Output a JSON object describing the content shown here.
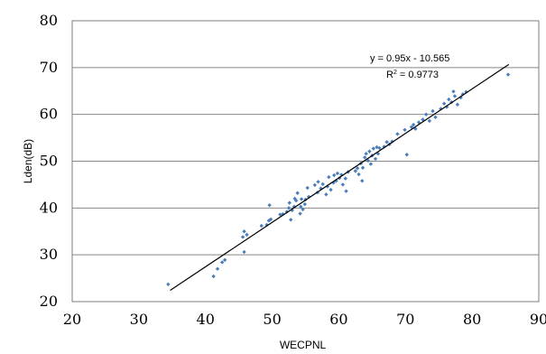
{
  "chart_data": {
    "type": "scatter",
    "title": "",
    "xlabel": "WECPNL",
    "ylabel": "Lden(dB)",
    "xlim": [
      20,
      90
    ],
    "ylim": [
      20,
      80
    ],
    "x_ticks": [
      20,
      30,
      40,
      50,
      60,
      70,
      80,
      90
    ],
    "y_ticks": [
      20,
      30,
      40,
      50,
      60,
      70,
      80
    ],
    "x_tick_labels": [
      "20",
      "30",
      "40",
      "50",
      "60",
      "70",
      "80",
      "90"
    ],
    "y_tick_labels": [
      "20",
      "30",
      "40",
      "50",
      "60",
      "70",
      "80"
    ],
    "grid": "horizontal",
    "marker_color": "#4a7ebb",
    "trendline": {
      "slope": 0.95,
      "intercept": -10.565,
      "x_range": [
        34.7,
        85.5
      ],
      "equation_label": "y = 0.95x - 10.565",
      "r2_label_prefix": "R",
      "r2_label_sup": "2",
      "r2_label_suffix": " = 0.9773"
    },
    "points": [
      [
        34.4,
        23.7
      ],
      [
        41.2,
        25.4
      ],
      [
        41.8,
        27.0
      ],
      [
        42.5,
        28.4
      ],
      [
        42.9,
        28.9
      ],
      [
        45.8,
        30.6
      ],
      [
        45.6,
        33.8
      ],
      [
        45.8,
        35.0
      ],
      [
        46.2,
        34.3
      ],
      [
        48.4,
        36.2
      ],
      [
        49.2,
        36.4
      ],
      [
        49.5,
        37.3
      ],
      [
        49.8,
        37.6
      ],
      [
        49.6,
        40.6
      ],
      [
        51.2,
        38.6
      ],
      [
        51.6,
        38.7
      ],
      [
        52.2,
        39.2
      ],
      [
        52.5,
        40.0
      ],
      [
        52.8,
        37.5
      ],
      [
        52.6,
        41.1
      ],
      [
        53.0,
        39.5
      ],
      [
        53.3,
        40.3
      ],
      [
        53.4,
        42.0
      ],
      [
        53.6,
        41.6
      ],
      [
        53.8,
        43.2
      ],
      [
        54.2,
        38.8
      ],
      [
        54.3,
        40.3
      ],
      [
        54.4,
        41.9
      ],
      [
        54.6,
        39.7
      ],
      [
        54.9,
        40.8
      ],
      [
        55.0,
        41.8
      ],
      [
        55.5,
        42.4
      ],
      [
        55.3,
        44.3
      ],
      [
        56.4,
        44.9
      ],
      [
        56.8,
        43.3
      ],
      [
        56.9,
        45.6
      ],
      [
        57.3,
        44.2
      ],
      [
        57.6,
        45.1
      ],
      [
        58.1,
        42.9
      ],
      [
        58.3,
        44.6
      ],
      [
        58.5,
        46.6
      ],
      [
        58.8,
        43.9
      ],
      [
        59.2,
        45.4
      ],
      [
        59.3,
        47.0
      ],
      [
        59.6,
        45.8
      ],
      [
        59.8,
        47.4
      ],
      [
        60.1,
        46.4
      ],
      [
        60.4,
        47.1
      ],
      [
        60.6,
        45.0
      ],
      [
        61.0,
        46.3
      ],
      [
        61.1,
        43.6
      ],
      [
        61.4,
        47.7
      ],
      [
        62.5,
        47.9
      ],
      [
        62.8,
        48.5
      ],
      [
        63.0,
        47.2
      ],
      [
        63.3,
        49.5
      ],
      [
        63.5,
        45.8
      ],
      [
        63.6,
        48.6
      ],
      [
        63.9,
        50.8
      ],
      [
        64.1,
        51.6
      ],
      [
        64.4,
        50.1
      ],
      [
        64.6,
        52.1
      ],
      [
        64.8,
        49.4
      ],
      [
        65.0,
        51.2
      ],
      [
        65.2,
        52.7
      ],
      [
        65.5,
        50.5
      ],
      [
        65.7,
        53.0
      ],
      [
        65.9,
        51.6
      ],
      [
        66.1,
        52.8
      ],
      [
        66.8,
        53.1
      ],
      [
        67.2,
        54.1
      ],
      [
        67.6,
        53.6
      ],
      [
        68.0,
        54.2
      ],
      [
        68.8,
        55.8
      ],
      [
        69.9,
        56.7
      ],
      [
        70.2,
        51.4
      ],
      [
        70.9,
        57.3
      ],
      [
        71.2,
        57.8
      ],
      [
        71.5,
        56.9
      ],
      [
        72.0,
        58.3
      ],
      [
        72.6,
        58.9
      ],
      [
        73.1,
        60.0
      ],
      [
        73.6,
        58.6
      ],
      [
        74.1,
        60.7
      ],
      [
        74.5,
        59.4
      ],
      [
        75.3,
        61.2
      ],
      [
        75.8,
        62.3
      ],
      [
        76.2,
        61.6
      ],
      [
        76.5,
        63.2
      ],
      [
        76.9,
        62.6
      ],
      [
        77.2,
        64.9
      ],
      [
        77.4,
        63.9
      ],
      [
        77.8,
        62.1
      ],
      [
        78.3,
        63.6
      ],
      [
        78.6,
        64.3
      ],
      [
        79.1,
        64.8
      ],
      [
        85.4,
        68.5
      ]
    ]
  }
}
